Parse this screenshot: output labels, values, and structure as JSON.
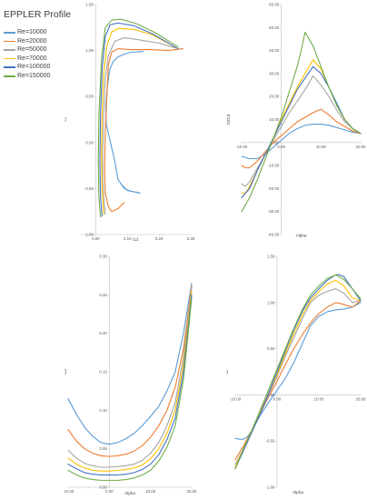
{
  "title": "EPPLER Profile",
  "colors": {
    "Re=10000": "#5b9bd5",
    "Re=20000": "#ed7d31",
    "Re=50000": "#a5a5a5",
    "Re=70000": "#ffc000",
    "Re=100000": "#4472c4",
    "Re=150000": "#70ad47"
  },
  "legend": [
    "Re=10000",
    "Re=20000",
    "Re=50000",
    "Re=70000",
    "Re=100000",
    "Re=150000"
  ],
  "chart_data": [
    {
      "type": "line",
      "panel": "top-left",
      "xlabel": "Cd",
      "ylabel": "Cl",
      "xlim": [
        -0.05,
        0.3
      ],
      "ylim": [
        -1.0,
        1.5
      ],
      "xticks": [
        0.0,
        0.1,
        0.2,
        0.3
      ],
      "xtick_labels": [
        "0.00",
        "0.10",
        "0.20",
        "0.30"
      ],
      "yticks": [
        -1.0,
        -0.5,
        0.0,
        0.5,
        1.0,
        1.5
      ],
      "ytick_labels": [
        "-1.00",
        "-0.50",
        "0.00",
        "0.50",
        "1.00",
        "1.50"
      ],
      "series": [
        {
          "name": "Re=10000",
          "x": [
            0.15,
            0.11,
            0.09,
            0.07,
            0.055,
            0.045,
            0.04,
            0.035,
            0.032,
            0.033,
            0.06,
            0.07,
            0.09,
            0.11,
            0.13,
            0.14,
            0.1,
            0.09,
            0.08
          ],
          "y": [
            0.99,
            0.98,
            0.96,
            0.93,
            0.88,
            0.8,
            0.7,
            0.55,
            0.4,
            0.2,
            -0.2,
            -0.4,
            -0.5,
            -0.53,
            -0.54,
            -0.55,
            -0.52,
            -0.49,
            -0.45
          ]
        },
        {
          "name": "Re=20000",
          "x": [
            0.275,
            0.23,
            0.17,
            0.11,
            0.07,
            0.05,
            0.04,
            0.035,
            0.03,
            0.028,
            0.03,
            0.04,
            0.05,
            0.07,
            0.09
          ],
          "y": [
            1.02,
            1.0,
            1.01,
            1.01,
            1.02,
            0.98,
            0.85,
            0.5,
            0.1,
            -0.3,
            -0.55,
            -0.7,
            -0.75,
            -0.72,
            -0.65
          ]
        },
        {
          "name": "Re=50000",
          "x": [
            0.26,
            0.2,
            0.13,
            0.09,
            0.06,
            0.04,
            0.03,
            0.025,
            0.022,
            0.022,
            0.025,
            0.03
          ],
          "y": [
            1.02,
            1.08,
            1.12,
            1.14,
            1.1,
            0.95,
            0.7,
            0.3,
            -0.1,
            -0.4,
            -0.6,
            -0.78
          ]
        },
        {
          "name": "Re=70000",
          "x": [
            0.26,
            0.18,
            0.12,
            0.07,
            0.05,
            0.035,
            0.025,
            0.02,
            0.018,
            0.02,
            0.025
          ],
          "y": [
            1.02,
            1.17,
            1.23,
            1.24,
            1.2,
            1.05,
            0.75,
            0.3,
            -0.1,
            -0.5,
            -0.78
          ]
        },
        {
          "name": "Re=100000",
          "x": [
            0.26,
            0.18,
            0.12,
            0.07,
            0.045,
            0.03,
            0.02,
            0.015,
            0.013,
            0.015,
            0.02
          ],
          "y": [
            1.02,
            1.18,
            1.27,
            1.3,
            1.28,
            1.15,
            0.8,
            0.3,
            -0.2,
            -0.6,
            -0.8
          ]
        },
        {
          "name": "Re=150000",
          "x": [
            0.26,
            0.19,
            0.13,
            0.08,
            0.05,
            0.03,
            0.018,
            0.01,
            0.008,
            0.01,
            0.015
          ],
          "y": [
            1.04,
            1.19,
            1.29,
            1.34,
            1.33,
            1.25,
            0.9,
            0.3,
            -0.2,
            -0.6,
            -0.81
          ]
        }
      ]
    },
    {
      "type": "line",
      "panel": "top-right",
      "xlabel": "Alpha",
      "ylabel": "Cl/Cd",
      "xlim": [
        -10,
        20
      ],
      "ylim": [
        -40,
        60
      ],
      "xaxis_at_y": 0,
      "xticks": [
        -10,
        0,
        10,
        20
      ],
      "xtick_labels": [
        "-10.00",
        "0.00",
        "10.00",
        "20.00"
      ],
      "yticks": [
        -40,
        -30,
        -20,
        -10,
        0,
        10,
        20,
        30,
        40,
        50,
        60
      ],
      "ytick_labels": [
        "-40.00",
        "-30.00",
        "-20.00",
        "-10.00",
        "0.00",
        "10.00",
        "20.00",
        "30.00",
        "40.00",
        "50.00",
        "60.00"
      ],
      "series": [
        {
          "name": "Re=10000",
          "x": [
            -10,
            -8,
            -6,
            -4,
            -2,
            0,
            2,
            4,
            6,
            8,
            10,
            12,
            14,
            16,
            18,
            20
          ],
          "y": [
            -6,
            -7,
            -7,
            -5,
            -2,
            1,
            4,
            6,
            7.5,
            8,
            8,
            7.5,
            6.5,
            5.5,
            4.5,
            4
          ]
        },
        {
          "name": "Re=20000",
          "x": [
            -10,
            -9,
            -8,
            -6,
            -4,
            -2,
            0,
            2,
            4,
            6,
            8,
            10,
            12,
            14,
            16,
            18,
            20
          ],
          "y": [
            -10,
            -11,
            -11,
            -8,
            -4,
            0,
            3,
            6,
            9,
            11,
            13,
            14.5,
            12,
            9,
            7,
            5,
            4
          ]
        },
        {
          "name": "Re=50000",
          "x": [
            -10,
            -9,
            -8,
            -6,
            -4,
            -2,
            0,
            2,
            4,
            6,
            8,
            10,
            12,
            14,
            16,
            18,
            20
          ],
          "y": [
            -18,
            -19,
            -17,
            -11,
            -5,
            1,
            7,
            13,
            18,
            23,
            29,
            25,
            20,
            14,
            9,
            6,
            4
          ]
        },
        {
          "name": "Re=70000",
          "x": [
            -10,
            -9,
            -8,
            -6,
            -4,
            -2,
            0,
            2,
            4,
            6,
            8,
            10,
            12,
            14,
            16,
            18,
            20
          ],
          "y": [
            -22,
            -22,
            -19,
            -12,
            -5,
            2,
            10,
            17,
            24,
            30,
            36,
            32,
            24,
            16,
            10,
            6,
            4
          ]
        },
        {
          "name": "Re=100000",
          "x": [
            -10,
            -8,
            -6,
            -4,
            -2,
            0,
            2,
            4,
            6,
            8,
            10,
            12,
            14,
            16,
            18,
            20
          ],
          "y": [
            -24,
            -20,
            -12,
            -5,
            2,
            9,
            16,
            23,
            28,
            33,
            30,
            24,
            17,
            10,
            6,
            4
          ]
        },
        {
          "name": "Re=150000",
          "x": [
            -10,
            -8,
            -6,
            -4,
            -2,
            0,
            2,
            4,
            5,
            6,
            8,
            10,
            12,
            14,
            16,
            18,
            20
          ],
          "y": [
            -30,
            -24,
            -16,
            -7,
            2,
            11,
            22,
            33,
            40,
            48,
            42,
            33,
            24,
            16,
            10,
            6,
            4
          ]
        }
      ]
    },
    {
      "type": "line",
      "panel": "bottom-left",
      "xlabel": "Alpha",
      "ylabel": "Cd",
      "xlim": [
        -10,
        20
      ],
      "ylim": [
        0.0,
        0.3
      ],
      "xticks": [
        -10,
        -5,
        0,
        5,
        10,
        15,
        20
      ],
      "xtick_labels": [
        "-10.00",
        "",
        "0.00",
        "",
        "10.00",
        "",
        "20.00"
      ],
      "yticks": [
        0.0,
        0.05,
        0.1,
        0.15,
        0.2,
        0.25,
        0.3
      ],
      "ytick_labels": [
        "0.00",
        "0.05",
        "0.10",
        "0.15",
        "0.20",
        "0.25",
        "0.30"
      ],
      "series": [
        {
          "name": "Re=10000",
          "x": [
            -10,
            -8,
            -6,
            -4,
            -2,
            0,
            2,
            4,
            6,
            8,
            10,
            12,
            14,
            16,
            18,
            20
          ],
          "y": [
            0.115,
            0.095,
            0.078,
            0.066,
            0.058,
            0.056,
            0.058,
            0.063,
            0.07,
            0.08,
            0.092,
            0.105,
            0.125,
            0.15,
            0.2,
            0.265
          ]
        },
        {
          "name": "Re=20000",
          "x": [
            -10,
            -8,
            -6,
            -4,
            -2,
            0,
            2,
            4,
            6,
            8,
            10,
            12,
            14,
            16,
            18,
            20
          ],
          "y": [
            0.075,
            0.06,
            0.05,
            0.044,
            0.041,
            0.04,
            0.041,
            0.043,
            0.047,
            0.054,
            0.065,
            0.08,
            0.1,
            0.13,
            0.18,
            0.262
          ]
        },
        {
          "name": "Re=50000",
          "x": [
            -10,
            -8,
            -6,
            -4,
            -2,
            0,
            2,
            4,
            6,
            8,
            10,
            12,
            14,
            16,
            18,
            20
          ],
          "y": [
            0.048,
            0.038,
            0.031,
            0.028,
            0.026,
            0.026,
            0.027,
            0.028,
            0.03,
            0.035,
            0.044,
            0.058,
            0.08,
            0.11,
            0.17,
            0.26
          ]
        },
        {
          "name": "Re=70000",
          "x": [
            -10,
            -8,
            -6,
            -4,
            -2,
            0,
            2,
            4,
            6,
            8,
            10,
            12,
            14,
            16,
            18,
            20
          ],
          "y": [
            0.038,
            0.03,
            0.025,
            0.022,
            0.021,
            0.021,
            0.022,
            0.023,
            0.025,
            0.029,
            0.037,
            0.05,
            0.07,
            0.1,
            0.16,
            0.255
          ]
        },
        {
          "name": "Re=100000",
          "x": [
            -10,
            -8,
            -6,
            -4,
            -2,
            0,
            2,
            4,
            6,
            8,
            10,
            12,
            14,
            16,
            18,
            20
          ],
          "y": [
            0.03,
            0.024,
            0.019,
            0.017,
            0.016,
            0.016,
            0.016,
            0.017,
            0.019,
            0.023,
            0.03,
            0.042,
            0.062,
            0.09,
            0.15,
            0.25
          ]
        },
        {
          "name": "Re=150000",
          "x": [
            -10,
            -8,
            -6,
            -4,
            -2,
            0,
            2,
            4,
            6,
            8,
            10,
            12,
            14,
            16,
            18,
            20
          ],
          "y": [
            0.022,
            0.016,
            0.012,
            0.01,
            0.009,
            0.009,
            0.009,
            0.01,
            0.012,
            0.016,
            0.022,
            0.034,
            0.052,
            0.08,
            0.14,
            0.245
          ]
        }
      ]
    },
    {
      "type": "line",
      "panel": "bottom-right",
      "xlabel": "Alpha",
      "ylabel": "Cl",
      "xlim": [
        -10,
        20
      ],
      "ylim": [
        -1.0,
        1.5
      ],
      "xaxis_at_y": 0,
      "xticks": [
        -10,
        0,
        10,
        20
      ],
      "xtick_labels": [
        "-10.00",
        "0.00",
        "10.00",
        "20.00"
      ],
      "yticks": [
        -1.0,
        -0.5,
        0.0,
        0.5,
        1.0,
        1.5
      ],
      "ytick_labels": [
        "-1.00",
        "-0.50",
        "0.00",
        "0.50",
        "1.00",
        "1.50"
      ],
      "series": [
        {
          "name": "Re=10000",
          "x": [
            -10,
            -9,
            -8,
            -7,
            -6,
            -4,
            -2,
            0,
            2,
            4,
            6,
            8,
            10,
            12,
            14,
            16,
            18,
            20
          ],
          "y": [
            -0.47,
            -0.48,
            -0.48,
            -0.45,
            -0.38,
            -0.22,
            -0.08,
            0.05,
            0.18,
            0.35,
            0.55,
            0.75,
            0.85,
            0.9,
            0.92,
            0.93,
            0.95,
            1.0
          ]
        },
        {
          "name": "Re=20000",
          "x": [
            -10,
            -8,
            -6,
            -4,
            -2,
            0,
            2,
            4,
            6,
            8,
            10,
            12,
            14,
            16,
            18,
            20
          ],
          "y": [
            -0.7,
            -0.55,
            -0.38,
            -0.2,
            -0.02,
            0.15,
            0.33,
            0.5,
            0.65,
            0.78,
            0.88,
            0.95,
            1.0,
            0.98,
            0.95,
            1.02
          ]
        },
        {
          "name": "Re=50000",
          "x": [
            -10,
            -8,
            -6,
            -4,
            -2,
            0,
            2,
            4,
            6,
            8,
            10,
            12,
            14,
            16,
            18,
            20
          ],
          "y": [
            -0.75,
            -0.58,
            -0.4,
            -0.2,
            0.0,
            0.2,
            0.42,
            0.62,
            0.82,
            1.0,
            1.08,
            1.12,
            1.15,
            1.1,
            1.0,
            1.02
          ]
        },
        {
          "name": "Re=70000",
          "x": [
            -10,
            -8,
            -6,
            -4,
            -2,
            0,
            2,
            4,
            6,
            8,
            10,
            12,
            14,
            16,
            18,
            20
          ],
          "y": [
            -0.78,
            -0.58,
            -0.38,
            -0.18,
            0.02,
            0.22,
            0.45,
            0.66,
            0.86,
            1.02,
            1.12,
            1.2,
            1.24,
            1.18,
            1.05,
            1.02
          ]
        },
        {
          "name": "Re=100000",
          "x": [
            -10,
            -8,
            -6,
            -4,
            -2,
            0,
            2,
            4,
            6,
            8,
            10,
            12,
            14,
            15,
            16,
            18,
            20
          ],
          "y": [
            -0.8,
            -0.6,
            -0.4,
            -0.2,
            0.02,
            0.25,
            0.48,
            0.7,
            0.9,
            1.05,
            1.15,
            1.24,
            1.3,
            1.3,
            1.28,
            1.15,
            1.02
          ]
        },
        {
          "name": "Re=150000",
          "x": [
            -10,
            -8,
            -6,
            -4,
            -2,
            0,
            2,
            4,
            6,
            8,
            10,
            12,
            14,
            16,
            18,
            20
          ],
          "y": [
            -0.8,
            -0.58,
            -0.38,
            -0.16,
            0.06,
            0.28,
            0.5,
            0.72,
            0.92,
            1.08,
            1.18,
            1.26,
            1.3,
            1.25,
            1.15,
            1.04
          ]
        }
      ]
    }
  ]
}
